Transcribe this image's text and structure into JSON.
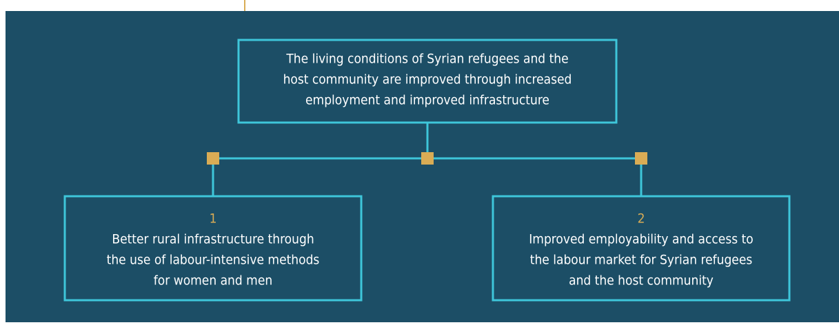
{
  "nodes": [
    {
      "lines": [
        "The living conditions of Syrian refugees and the",
        "host community are improved through increased",
        "employment and improved infrastructure"
      ]
    },
    {
      "number": "1",
      "lines": [
        "Better rural infrastructure through",
        "the use of labour-intensive methods",
        "for women and men"
      ]
    },
    {
      "number": "2",
      "lines": [
        "Improved employability and access to",
        "the labour market for Syrian refugees",
        "and the host community"
      ]
    }
  ]
}
